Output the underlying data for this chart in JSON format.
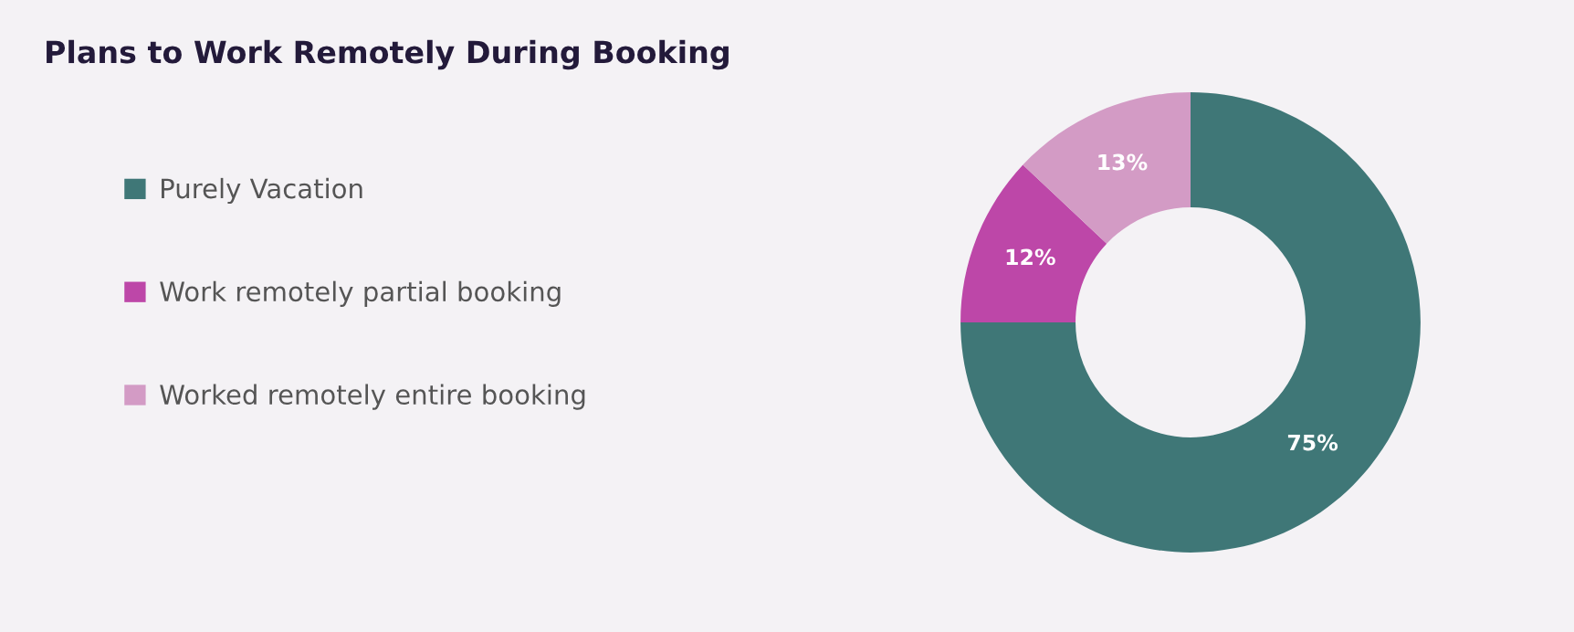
{
  "chart_data": {
    "type": "donut",
    "title": "Plans to Work Remotely During Booking",
    "categories": [
      "Purely Vacation",
      "Work remotely partial booking",
      "Worked remotely entire booking"
    ],
    "values": [
      75,
      12,
      13
    ],
    "colors": [
      "#3f7777",
      "#bd47a8",
      "#d39bc5"
    ],
    "value_labels": [
      "75%",
      "12%",
      "13%"
    ],
    "legend": "left"
  }
}
